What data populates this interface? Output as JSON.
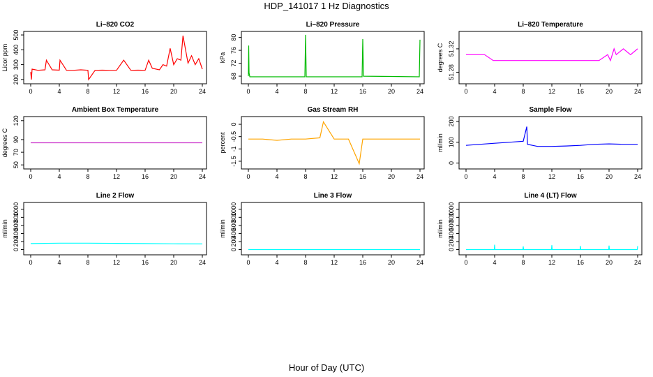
{
  "title": "HDP_141017  1 Hz Diagnostics",
  "xlabel": "Hour of Day (UTC)",
  "chart_data": [
    {
      "type": "line",
      "title": "Li–820 CO2",
      "ylabel": "Licor ppm",
      "color": "#ff0000",
      "xlim": [
        0,
        24
      ],
      "xticks": [
        "0",
        "4",
        "8",
        "12",
        "16",
        "20",
        "24"
      ],
      "ylim": [
        190,
        505
      ],
      "yticks": [
        200,
        300,
        400,
        500
      ],
      "series": {
        "x": [
          0,
          0.1,
          0.2,
          1,
          2,
          2.2,
          3,
          4,
          4.1,
          5,
          6,
          7,
          8,
          8.1,
          9,
          10,
          11,
          12,
          13,
          14,
          15,
          16,
          16.5,
          17,
          18,
          18.5,
          19,
          19.5,
          20,
          20.5,
          21,
          21.3,
          22,
          22.5,
          23,
          23.5,
          24
        ],
        "y": [
          250,
          200,
          270,
          262,
          265,
          330,
          265,
          263,
          330,
          262,
          262,
          265,
          262,
          200,
          262,
          263,
          262,
          262,
          330,
          262,
          263,
          262,
          330,
          275,
          265,
          300,
          290,
          410,
          300,
          340,
          330,
          495,
          310,
          360,
          300,
          340,
          270
        ]
      }
    },
    {
      "type": "line",
      "title": "Li–820 Pressure",
      "ylabel": "kPa",
      "color": "#00bb00",
      "xlim": [
        0,
        24
      ],
      "xticks": [
        "0",
        "4",
        "8",
        "12",
        "16",
        "20",
        "24"
      ],
      "ylim": [
        66.5,
        81
      ],
      "yticks": [
        68,
        72,
        76,
        80
      ],
      "series": {
        "x": [
          0,
          0.05,
          0.1,
          0.2,
          4,
          7.9,
          8,
          8.1,
          12,
          15.9,
          16,
          16.1,
          20,
          23.9,
          24
        ],
        "y": [
          68,
          77.5,
          69,
          67.8,
          67.8,
          67.8,
          80.8,
          67.8,
          67.8,
          67.8,
          79.5,
          68,
          67.9,
          67.8,
          79.3
        ]
      }
    },
    {
      "type": "line",
      "title": "Li–820 Temperature",
      "ylabel": "degrees C",
      "color": "#ff00ff",
      "xlim": [
        0,
        24
      ],
      "xticks": [
        "0",
        "4",
        "8",
        "12",
        "16",
        "20",
        "24"
      ],
      "ylim": [
        51.265,
        51.345
      ],
      "yticks": [
        51.28,
        51.32
      ],
      "series": {
        "x": [
          0,
          0.1,
          2.6,
          3.8,
          4,
          8,
          12,
          16,
          18.6,
          19.8,
          20.2,
          20.7,
          21,
          22,
          23,
          24
        ],
        "y": [
          51.31,
          51.31,
          51.31,
          51.3,
          51.3,
          51.3,
          51.3,
          51.3,
          51.3,
          51.31,
          51.3,
          51.32,
          51.31,
          51.32,
          51.31,
          51.32
        ]
      }
    },
    {
      "type": "line",
      "title": "Ambient Box Temperature",
      "ylabel": "degrees C",
      "color": "#cc33cc",
      "xlim": [
        0,
        24
      ],
      "xticks": [
        "0",
        "4",
        "8",
        "12",
        "16",
        "20",
        "24"
      ],
      "ylim": [
        48,
        122
      ],
      "yticks": [
        50,
        70,
        90,
        120
      ],
      "series": {
        "x": [
          0,
          24
        ],
        "y": [
          85,
          85
        ]
      }
    },
    {
      "type": "line",
      "title": "Gas Stream RH",
      "ylabel": "percent",
      "color": "#ffa500",
      "xlim": [
        0,
        24
      ],
      "xticks": [
        "0",
        "4",
        "8",
        "12",
        "16",
        "20",
        "24"
      ],
      "ylim": [
        -1.7,
        0.2
      ],
      "yticks": [
        -1.5,
        -1.0,
        -0.5,
        0.0
      ],
      "series": {
        "x": [
          0,
          2,
          4,
          6,
          8,
          10,
          10.5,
          12,
          14,
          15.5,
          16,
          18,
          20,
          22,
          24
        ],
        "y": [
          -0.6,
          -0.6,
          -0.65,
          -0.6,
          -0.6,
          -0.55,
          0.1,
          -0.6,
          -0.6,
          -1.6,
          -0.6,
          -0.6,
          -0.6,
          -0.6,
          -0.6
        ]
      }
    },
    {
      "type": "line",
      "title": "Sample Flow",
      "ylabel": "ml/min",
      "color": "#0000ff",
      "xlim": [
        0,
        24
      ],
      "xticks": [
        "0",
        "4",
        "8",
        "12",
        "16",
        "20",
        "24"
      ],
      "ylim": [
        -15,
        210
      ],
      "yticks": [
        0,
        100,
        200
      ],
      "series": {
        "x": [
          0,
          2,
          4,
          6,
          8,
          8.5,
          8.6,
          10,
          12,
          14,
          16,
          18,
          20,
          22,
          24
        ],
        "y": [
          85,
          90,
          95,
          100,
          105,
          175,
          90,
          80,
          80,
          82,
          85,
          90,
          92,
          90,
          90
        ]
      }
    },
    {
      "type": "line",
      "title": "Line 2 Flow",
      "ylabel": "ml/min",
      "color": "#00ffff",
      "xlim": [
        0,
        24
      ],
      "xticks": [
        "0",
        "4",
        "8",
        "12",
        "16",
        "20",
        "24"
      ],
      "ylim": [
        -60,
        1100
      ],
      "yticks": [
        0,
        200,
        400,
        600,
        800,
        1000
      ],
      "series": {
        "x": [
          0,
          4,
          8,
          12,
          16,
          20,
          24
        ],
        "y": [
          150,
          160,
          160,
          155,
          150,
          145,
          140
        ]
      }
    },
    {
      "type": "line",
      "title": "Line 3 Flow",
      "ylabel": "ml/min",
      "color": "#00ffff",
      "xlim": [
        0,
        24
      ],
      "xticks": [
        "0",
        "4",
        "8",
        "12",
        "16",
        "20",
        "24"
      ],
      "ylim": [
        -60,
        1100
      ],
      "yticks": [
        0,
        200,
        400,
        600,
        800,
        1000
      ],
      "series": {
        "x": [
          0,
          24
        ],
        "y": [
          0,
          0
        ]
      }
    },
    {
      "type": "line",
      "title": "Line 4 (LT) Flow",
      "ylabel": "ml/min",
      "color": "#00ffff",
      "xlim": [
        0,
        24
      ],
      "xticks": [
        "0",
        "4",
        "8",
        "12",
        "16",
        "20",
        "24"
      ],
      "ylim": [
        -60,
        1100
      ],
      "yticks": [
        0,
        200,
        400,
        600,
        800,
        1000
      ],
      "series": {
        "x": [
          0,
          3.95,
          4,
          4.05,
          7.95,
          8,
          8.05,
          11.95,
          12,
          12.05,
          15.95,
          16,
          16.05,
          19.95,
          20,
          20.05,
          23.95,
          24
        ],
        "y": [
          0,
          0,
          120,
          0,
          0,
          80,
          0,
          0,
          110,
          0,
          0,
          90,
          0,
          0,
          100,
          0,
          0,
          85
        ]
      }
    }
  ]
}
